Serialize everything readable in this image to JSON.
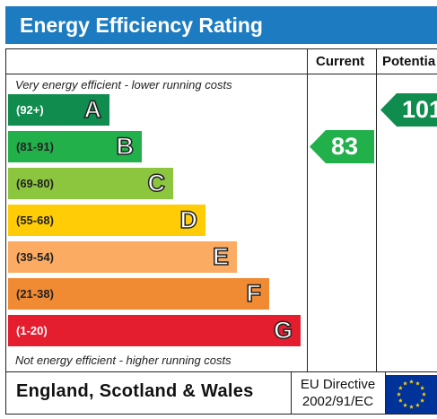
{
  "title": "Energy Efficiency Rating",
  "columns": {
    "current": "Current",
    "potential": "Potentia"
  },
  "top_note": "Very energy efficient - lower running costs",
  "bottom_note": "Not energy efficient - higher running costs",
  "footer": {
    "country": "England, Scotland & Wales",
    "directive_line1": "EU Directive",
    "directive_line2": "2002/91/EC"
  },
  "chart_data": {
    "type": "bar",
    "title": "Energy Efficiency Rating",
    "categories": [
      "A",
      "B",
      "C",
      "D",
      "E",
      "F",
      "G"
    ],
    "ranges": [
      "(92+)",
      "(81-91)",
      "(69-80)",
      "(55-68)",
      "(39-54)",
      "(21-38)",
      "(1-20)"
    ],
    "colors": [
      "#0f8c4e",
      "#22b04b",
      "#8cc63f",
      "#ffcc05",
      "#fbab62",
      "#f08a33",
      "#e41e2f"
    ],
    "current": {
      "value": 83,
      "band": "B",
      "color": "#22b04b"
    },
    "potential": {
      "value": 101,
      "band": "A",
      "color": "#0f8c4e"
    }
  }
}
